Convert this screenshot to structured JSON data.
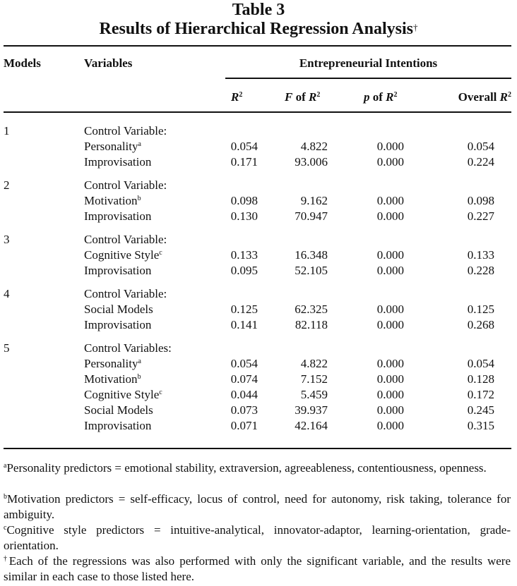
{
  "title": {
    "line1": "Table 3",
    "line2": "Results of Hierarchical Regression Analysis",
    "line2_mark": "†"
  },
  "headers": {
    "models": "Models",
    "variables": "Variables",
    "group": "Entrepreneurial Intentions",
    "r2": {
      "sym": "R",
      "exp": "2"
    },
    "f": {
      "prefix": "F",
      "mid": " of ",
      "sym": "R",
      "exp": "2"
    },
    "p": {
      "prefix": "p",
      "mid": " of ",
      "sym": "R",
      "exp": "2"
    },
    "overall": {
      "prefix": "Overall ",
      "sym": "R",
      "exp": "2"
    }
  },
  "rows": [
    {
      "model": "1",
      "variable": "Control Variable:",
      "note": "",
      "r2": "",
      "f": "",
      "p": "",
      "overall": ""
    },
    {
      "model": "",
      "variable": "Personality",
      "note": "a",
      "r2": "0.054",
      "f": "4.822",
      "p": "0.000",
      "overall": "0.054"
    },
    {
      "model": "",
      "variable": "Improvisation",
      "note": "",
      "r2": "0.171",
      "f": "93.006",
      "p": "0.000",
      "overall": "0.224"
    },
    {
      "model": "2",
      "variable": "Control Variable:",
      "note": "",
      "r2": "",
      "f": "",
      "p": "",
      "overall": ""
    },
    {
      "model": "",
      "variable": "Motivation",
      "note": "b",
      "r2": "0.098",
      "f": "9.162",
      "p": "0.000",
      "overall": "0.098"
    },
    {
      "model": "",
      "variable": "Improvisation",
      "note": "",
      "r2": "0.130",
      "f": "70.947",
      "p": "0.000",
      "overall": "0.227"
    },
    {
      "model": "3",
      "variable": "Control Variable:",
      "note": "",
      "r2": "",
      "f": "",
      "p": "",
      "overall": ""
    },
    {
      "model": "",
      "variable": "Cognitive Style",
      "note": "c",
      "r2": "0.133",
      "f": "16.348",
      "p": "0.000",
      "overall": "0.133"
    },
    {
      "model": "",
      "variable": "Improvisation",
      "note": "",
      "r2": "0.095",
      "f": "52.105",
      "p": "0.000",
      "overall": "0.228"
    },
    {
      "model": "4",
      "variable": "Control Variable:",
      "note": "",
      "r2": "",
      "f": "",
      "p": "",
      "overall": ""
    },
    {
      "model": "",
      "variable": "Social Models",
      "note": "",
      "r2": "0.125",
      "f": "62.325",
      "p": "0.000",
      "overall": "0.125"
    },
    {
      "model": "",
      "variable": "Improvisation",
      "note": "",
      "r2": "0.141",
      "f": "82.118",
      "p": "0.000",
      "overall": "0.268"
    },
    {
      "model": "5",
      "variable": "Control Variables:",
      "note": "",
      "r2": "",
      "f": "",
      "p": "",
      "overall": ""
    },
    {
      "model": "",
      "variable": "Personality",
      "note": "a",
      "r2": "0.054",
      "f": "4.822",
      "p": "0.000",
      "overall": "0.054"
    },
    {
      "model": "",
      "variable": "Motivation",
      "note": "b",
      "r2": "0.074",
      "f": "7.152",
      "p": "0.000",
      "overall": "0.128"
    },
    {
      "model": "",
      "variable": "Cognitive Style",
      "note": "c",
      "r2": "0.044",
      "f": "5.459",
      "p": "0.000",
      "overall": "0.172"
    },
    {
      "model": "",
      "variable": "Social Models",
      "note": "",
      "r2": "0.073",
      "f": "39.937",
      "p": "0.000",
      "overall": "0.245"
    },
    {
      "model": "",
      "variable": "Improvisation",
      "note": "",
      "r2": "0.071",
      "f": "42.164",
      "p": "0.000",
      "overall": "0.315"
    }
  ],
  "footnotes": [
    {
      "mark": "a",
      "text": "Personality predictors = emotional stability, extraversion, agreeableness, contentiousness, openness."
    },
    {
      "mark": "b",
      "text": "Motivation predictors = self-efficacy, locus of control, need for autonomy, risk taking, tolerance for ambiguity."
    },
    {
      "mark": "c",
      "text": "Cognitive style predictors = intuitive-analytical, innovator-adaptor, learning-orientation, grade-orientation."
    },
    {
      "mark": "†",
      "text": "Each of the regressions was also performed with only the significant variable, and the results were similar in each case to those listed here."
    }
  ]
}
